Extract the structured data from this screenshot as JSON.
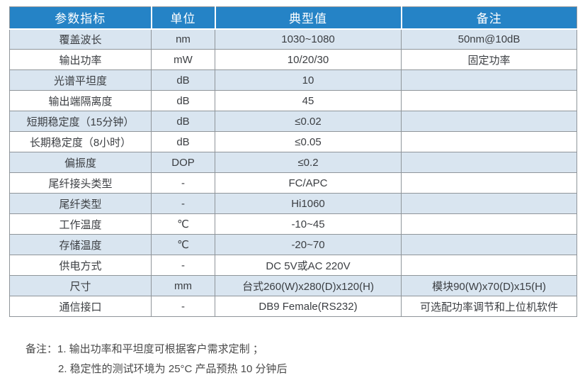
{
  "table": {
    "headers": [
      "参数指标",
      "单位",
      "典型值",
      "备注"
    ],
    "rows": [
      {
        "param": "覆盖波长",
        "unit": "nm",
        "typical": "1030~1080",
        "remark": "50nm@10dB"
      },
      {
        "param": "输出功率",
        "unit": "mW",
        "typical": "10/20/30",
        "remark": "固定功率"
      },
      {
        "param": "光谱平坦度",
        "unit": "dB",
        "typical": "10",
        "remark": ""
      },
      {
        "param": "输出端隔离度",
        "unit": "dB",
        "typical": "45",
        "remark": ""
      },
      {
        "param": "短期稳定度（15分钟）",
        "unit": "dB",
        "typical": "≤0.02",
        "remark": ""
      },
      {
        "param": "长期稳定度（8小时）",
        "unit": "dB",
        "typical": "≤0.05",
        "remark": ""
      },
      {
        "param": "偏振度",
        "unit": "DOP",
        "typical": "≤0.2",
        "remark": ""
      },
      {
        "param": "尾纤接头类型",
        "unit": "-",
        "typical": "FC/APC",
        "remark": ""
      },
      {
        "param": "尾纤类型",
        "unit": "-",
        "typical": "Hi1060",
        "remark": ""
      },
      {
        "param": "工作温度",
        "unit": "℃",
        "typical": "-10~45",
        "remark": ""
      },
      {
        "param": "存储温度",
        "unit": "℃",
        "typical": "-20~70",
        "remark": ""
      },
      {
        "param": "供电方式",
        "unit": "-",
        "typical": "DC 5V或AC 220V",
        "remark": ""
      },
      {
        "param": "尺寸",
        "unit": "mm",
        "typical": "台式260(W)x280(D)x120(H)",
        "remark": "模块90(W)x70(D)x15(H)"
      },
      {
        "param": "通信接口",
        "unit": "-",
        "typical": "DB9 Female(RS232)",
        "remark": "可选配功率调节和上位机软件"
      }
    ]
  },
  "notes": {
    "line1": "备注：1. 输出功率和平坦度可根据客户需求定制 ；",
    "line2": "2. 稳定性的测试环境为 25°C 产品预热 10 分钟后"
  },
  "colors": {
    "header_bg": "#2583c6",
    "row_alt": "#d9e5f0",
    "border": "#8f959a",
    "text": "#3b3e42",
    "notes_text": "#4a4a4a"
  }
}
